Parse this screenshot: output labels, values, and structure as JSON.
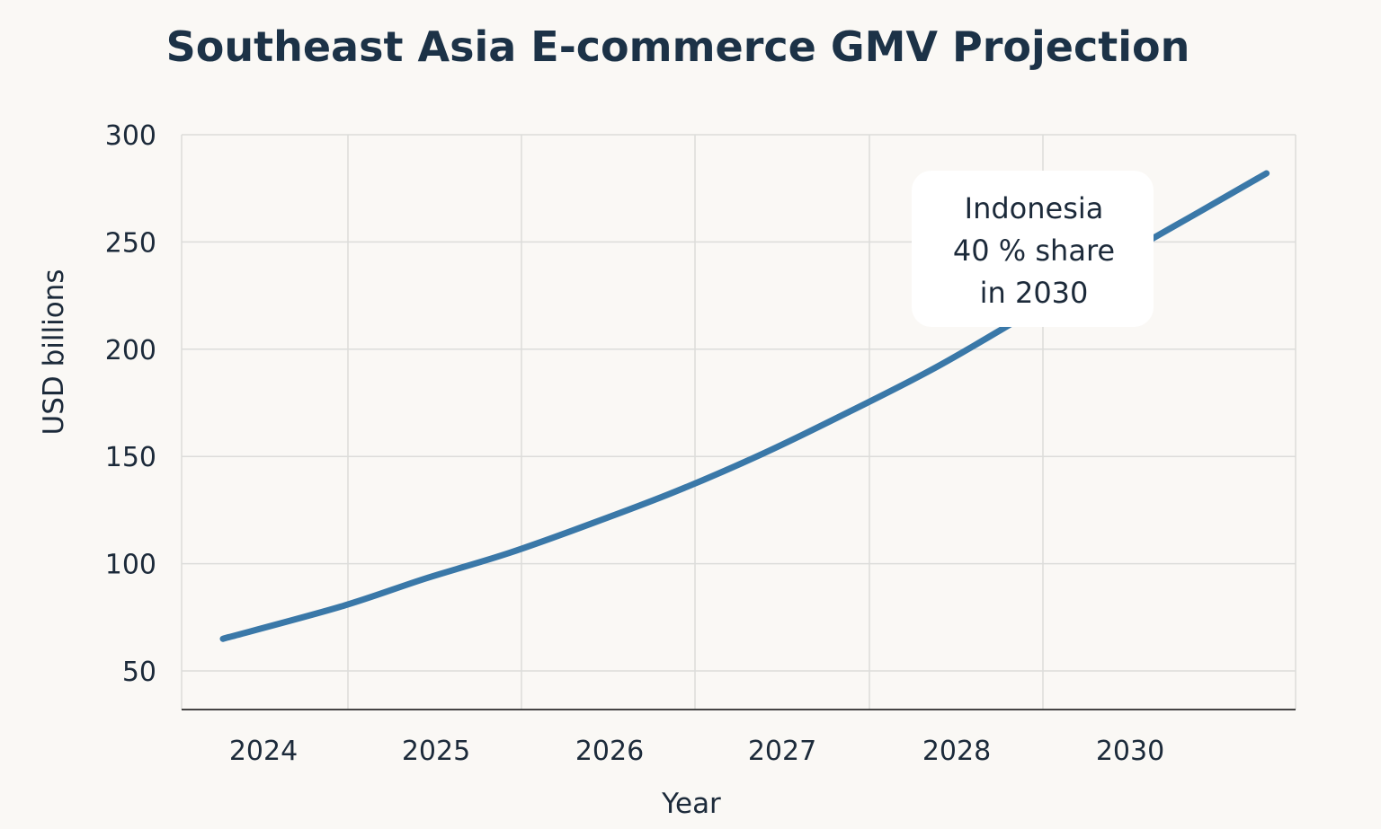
{
  "chart_data": {
    "type": "line",
    "title": "Southeast Asia E-commerce GMV Projection",
    "xlabel": "Year",
    "ylabel": "USD billions",
    "categories": [
      "2024",
      "2025",
      "2026",
      "2027",
      "2028",
      "2030"
    ],
    "y_ticks": [
      50,
      100,
      150,
      200,
      250,
      300
    ],
    "ylim": [
      32,
      300
    ],
    "grid": true,
    "series": [
      {
        "color": "#3a78a8",
        "points": [
          {
            "x": 0.0,
            "y": 65
          },
          {
            "x": 0.7,
            "y": 80
          },
          {
            "x": 1.2,
            "y": 93
          },
          {
            "x": 1.7,
            "y": 105
          },
          {
            "x": 2.2,
            "y": 119
          },
          {
            "x": 2.7,
            "y": 134
          },
          {
            "x": 3.2,
            "y": 151
          },
          {
            "x": 3.7,
            "y": 170
          },
          {
            "x": 4.2,
            "y": 190
          },
          {
            "x": 4.6,
            "y": 208
          },
          {
            "x": 5.0,
            "y": 227
          },
          {
            "x": 5.4,
            "y": 246
          },
          {
            "x": 5.8,
            "y": 264
          },
          {
            "x": 6.2,
            "y": 282
          }
        ]
      }
    ],
    "annotation": {
      "lines": [
        "Indonesia",
        "40 % share",
        "in 2030"
      ]
    }
  }
}
